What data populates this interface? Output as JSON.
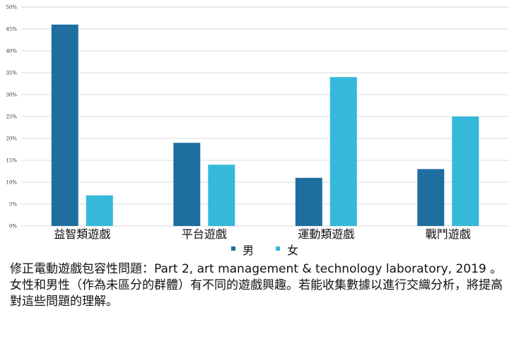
{
  "chart_data": {
    "type": "bar",
    "categories": [
      "益智類遊戲",
      "平台遊戲",
      "運動類遊戲",
      "戰鬥遊戲"
    ],
    "series": [
      {
        "name": "男",
        "values": [
          46,
          19,
          11,
          13
        ],
        "color": "#1f6ea0"
      },
      {
        "name": "女",
        "values": [
          7,
          14,
          34,
          25
        ],
        "color": "#35b9da"
      }
    ],
    "yticks": [
      "0%",
      "5%",
      "10%",
      "15%",
      "20%",
      "25%",
      "30%",
      "35%",
      "40%",
      "45%",
      "50%"
    ],
    "ylim": [
      0,
      50
    ],
    "grid": true,
    "legend_position": "bottom-center"
  },
  "caption": "修正電動遊戲包容性問題：Part 2, art management & technology laboratory, 2019 。女性和男性（作為未區分的群體）有不同的遊戲興趣。若能收集數據以進行交織分析，將提高對這些問題的理解。"
}
